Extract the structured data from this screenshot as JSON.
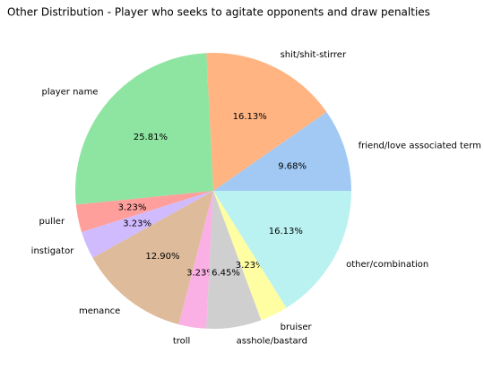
{
  "chart_data": {
    "type": "pie",
    "title": "Other Distribution - Player who seeks to agitate opponents and draw penalties",
    "categories": [
      "friend/love associated term",
      "shit/shit-stirrer",
      "player name",
      "puller",
      "instigator",
      "menance",
      "troll",
      "asshole/bastard",
      "bruiser",
      "other/combination"
    ],
    "values": [
      9.68,
      16.13,
      25.81,
      3.23,
      3.23,
      12.9,
      3.23,
      6.45,
      3.23,
      16.13
    ],
    "value_labels": [
      "9.68%",
      "16.13%",
      "25.81%",
      "3.23%",
      "3.23%",
      "12.90%",
      "3.23%",
      "6.45%",
      "3.23%",
      "16.13%"
    ],
    "colors": [
      "#a1c9f4",
      "#ffb482",
      "#8de5a1",
      "#ff9f9b",
      "#d0bbff",
      "#debb9b",
      "#fab0e4",
      "#cfcfcf",
      "#fffea3",
      "#b9f2f0"
    ]
  }
}
